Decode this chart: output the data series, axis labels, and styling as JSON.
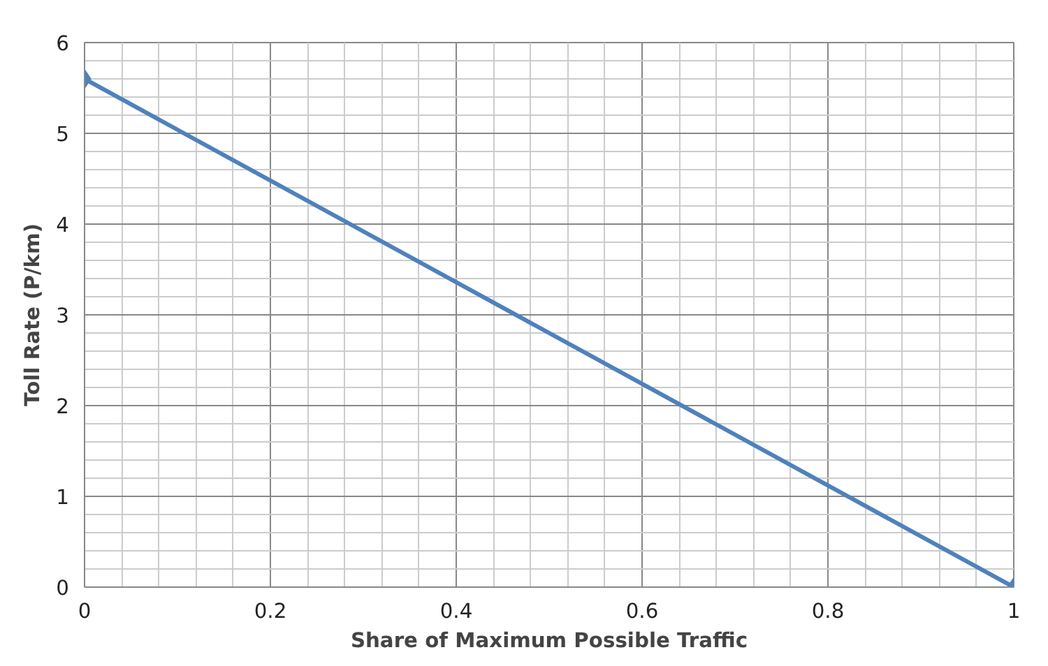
{
  "chart_data": {
    "type": "line",
    "xlabel": "Share of Maximum Possible Traffic",
    "ylabel": "Toll Rate (P/km)",
    "x": [
      0,
      1
    ],
    "series": [
      {
        "color": "#4f81bd",
        "values": [
          5.6,
          0
        ]
      }
    ],
    "xlim": [
      0,
      1
    ],
    "xticks": [
      0,
      0.2,
      0.4,
      0.6,
      0.8,
      1
    ],
    "ylim": [
      0,
      6
    ],
    "yticks": [
      0,
      1,
      2,
      3,
      4,
      5,
      6
    ],
    "grid": true,
    "marker": "diamond",
    "line_style": "solid"
  }
}
